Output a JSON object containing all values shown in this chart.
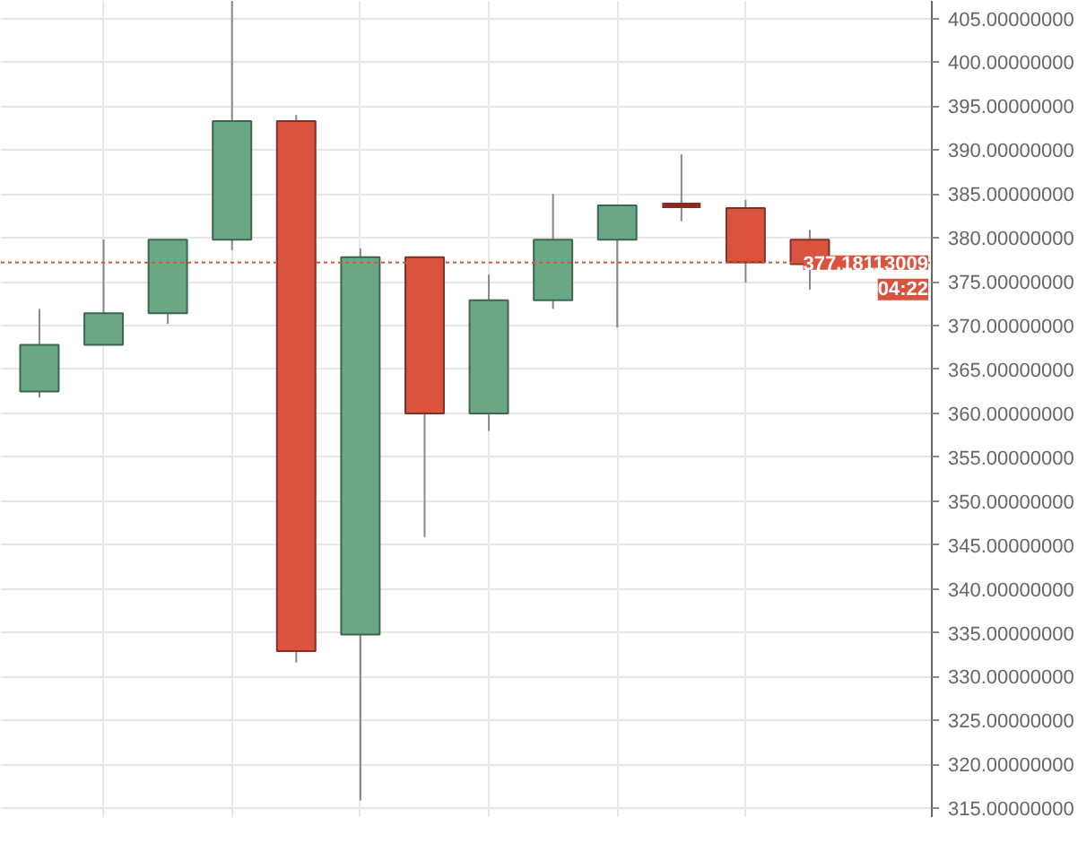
{
  "chart_data": {
    "type": "candlestick",
    "categories": [
      null,
      null,
      null,
      null,
      null,
      null,
      null,
      null,
      null,
      null,
      null,
      null,
      null
    ],
    "ohlc": [
      [
        362.5,
        371.9,
        361.8,
        367.8
      ],
      [
        367.8,
        379.8,
        367.8,
        371.4
      ],
      [
        371.4,
        379.8,
        370.2,
        379.8
      ],
      [
        379.8,
        407.0,
        378.6,
        393.3
      ],
      [
        393.3,
        394.0,
        331.6,
        332.9
      ],
      [
        334.8,
        378.8,
        315.9,
        377.8
      ],
      [
        377.8,
        377.8,
        345.9,
        360.0
      ],
      [
        360.0,
        375.8,
        358.0,
        372.9
      ],
      [
        372.9,
        385.0,
        371.9,
        379.8
      ],
      [
        379.8,
        383.7,
        369.8,
        383.7
      ],
      [
        383.7,
        389.5,
        381.9,
        383.7
      ],
      [
        383.4,
        384.3,
        374.9,
        377.2
      ],
      [
        379.8,
        380.9,
        374.1,
        377.0
      ]
    ],
    "colors": [
      "#6aa784",
      "#6aa784",
      "#6aa784",
      "#6aa784",
      "#d9533f",
      "#6aa784",
      "#d9533f",
      "#6aa784",
      "#6aa784",
      "#6aa784",
      "#8b2a1f",
      "#d9533f",
      "#d9533f"
    ],
    "ylim": [
      314,
      407
    ],
    "yticks": [
      {
        "value": 315,
        "label": "315.00000000"
      },
      {
        "value": 320,
        "label": "320.00000000"
      },
      {
        "value": 325,
        "label": "325.00000000"
      },
      {
        "value": 330,
        "label": "330.00000000"
      },
      {
        "value": 335,
        "label": "335.00000000"
      },
      {
        "value": 340,
        "label": "340.00000000"
      },
      {
        "value": 345,
        "label": "345.00000000"
      },
      {
        "value": 350,
        "label": "350.00000000"
      },
      {
        "value": 355,
        "label": "355.00000000"
      },
      {
        "value": 360,
        "label": "360.00000000"
      },
      {
        "value": 365,
        "label": "365.00000000"
      },
      {
        "value": 370,
        "label": "370.00000000"
      },
      {
        "value": 375,
        "label": "375.00000000"
      },
      {
        "value": 380,
        "label": "380.00000000"
      },
      {
        "value": 385,
        "label": "385.00000000"
      },
      {
        "value": 390,
        "label": "390.00000000"
      },
      {
        "value": 395,
        "label": "395.00000000"
      },
      {
        "value": 400,
        "label": "400.00000000"
      },
      {
        "value": 405,
        "label": "405.00000000"
      }
    ],
    "ref_lines": [
      {
        "axis": "y",
        "value": 377.18113009,
        "label": "377.18113009",
        "color": "#d9533f",
        "line_style": "dotted"
      }
    ],
    "annotations": [
      "04:22"
    ],
    "grid": true,
    "tick_labels": "y"
  }
}
